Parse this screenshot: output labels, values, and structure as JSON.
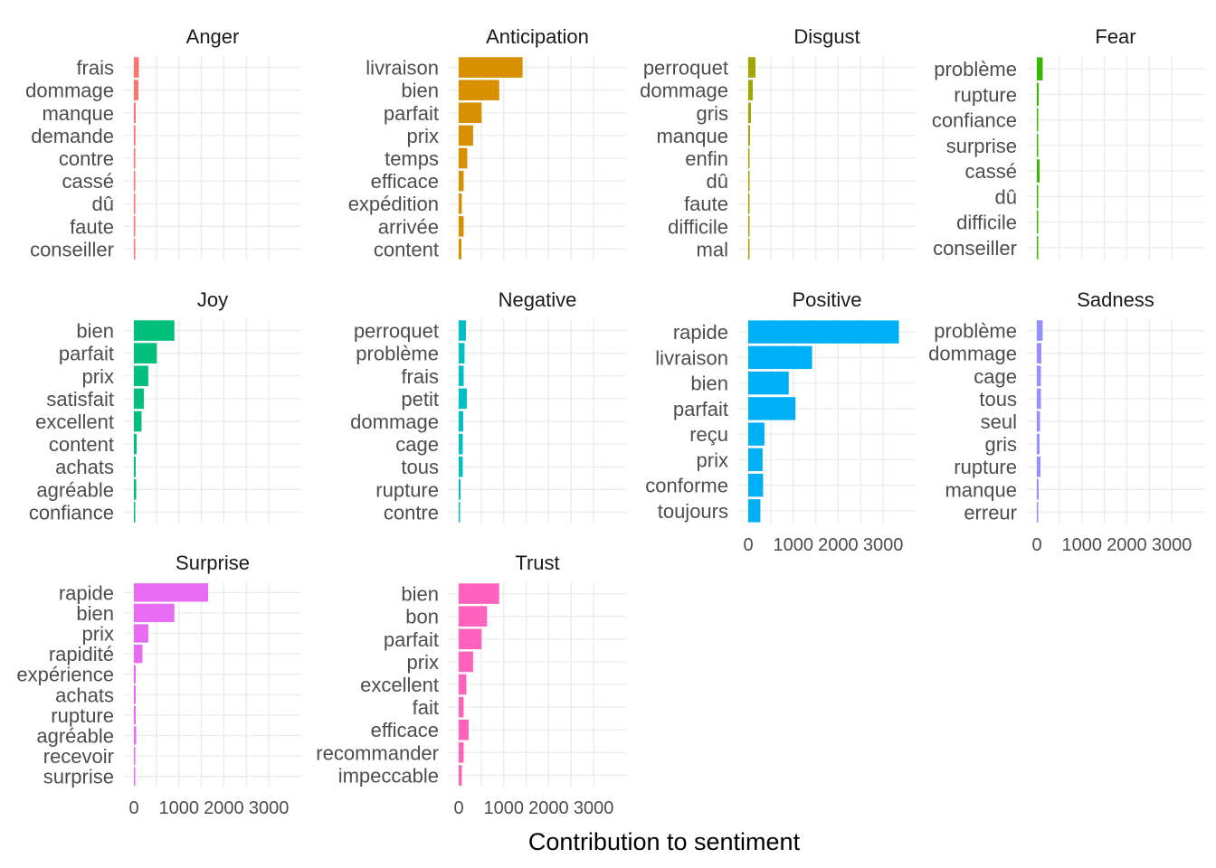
{
  "chart_data": {
    "type": "bar",
    "orientation": "horizontal",
    "layout": "facet_wrap",
    "xlabel": "Contribution to sentiment",
    "x_ticks": [
      0,
      1000,
      2000,
      3000
    ],
    "x_tick_labels": [
      "0",
      "1000",
      "2000",
      "3000"
    ],
    "xlim": [
      0,
      3500
    ],
    "grid": true,
    "facets": [
      {
        "name": "Anger",
        "color": "#F8766D",
        "categories": [
          "frais",
          "dommage",
          "manque",
          "demande",
          "contre",
          "cassé",
          "dû",
          "faute",
          "conseiller"
        ],
        "values": [
          110,
          100,
          40,
          35,
          30,
          30,
          20,
          20,
          15
        ]
      },
      {
        "name": "Anticipation",
        "color": "#D89000",
        "categories": [
          "livraison",
          "bien",
          "parfait",
          "prix",
          "temps",
          "efficace",
          "expédition",
          "arrivée",
          "content"
        ],
        "values": [
          1420,
          900,
          510,
          320,
          190,
          110,
          70,
          110,
          60
        ]
      },
      {
        "name": "Disgust",
        "color": "#A3A500",
        "categories": [
          "perroquet",
          "dommage",
          "gris",
          "manque",
          "enfin",
          "dû",
          "faute",
          "difficile",
          "mal"
        ],
        "values": [
          160,
          100,
          60,
          40,
          30,
          20,
          20,
          15,
          15
        ]
      },
      {
        "name": "Fear",
        "color": "#39B600",
        "categories": [
          "problème",
          "rupture",
          "confiance",
          "surprise",
          "cassé",
          "dû",
          "difficile",
          "conseiller"
        ],
        "values": [
          130,
          40,
          25,
          20,
          60,
          20,
          15,
          15
        ]
      },
      {
        "name": "Joy",
        "color": "#00BF7D",
        "categories": [
          "bien",
          "parfait",
          "prix",
          "satisfait",
          "excellent",
          "content",
          "achats",
          "agréable",
          "confiance"
        ],
        "values": [
          900,
          510,
          320,
          220,
          170,
          60,
          40,
          50,
          25
        ]
      },
      {
        "name": "Negative",
        "color": "#00BFC4",
        "categories": [
          "perroquet",
          "problème",
          "frais",
          "petit",
          "dommage",
          "cage",
          "tous",
          "rupture",
          "contre"
        ],
        "values": [
          160,
          130,
          110,
          180,
          100,
          90,
          90,
          40,
          30
        ]
      },
      {
        "name": "Positive",
        "color": "#00B0F6",
        "categories": [
          "rapide",
          "livraison",
          "bien",
          "parfait",
          "reçu",
          "prix",
          "conforme",
          "toujours"
        ],
        "values": [
          3350,
          1420,
          900,
          1050,
          360,
          320,
          330,
          270
        ]
      },
      {
        "name": "Sadness",
        "color": "#9590FF",
        "categories": [
          "problème",
          "dommage",
          "cage",
          "tous",
          "seul",
          "gris",
          "rupture",
          "manque",
          "erreur"
        ],
        "values": [
          130,
          100,
          90,
          90,
          70,
          60,
          80,
          40,
          25
        ]
      },
      {
        "name": "Surprise",
        "color": "#E76BF3",
        "categories": [
          "rapide",
          "bien",
          "prix",
          "rapidité",
          "expérience",
          "achats",
          "rupture",
          "agréable",
          "recevoir",
          "surprise"
        ],
        "values": [
          1650,
          900,
          320,
          190,
          40,
          40,
          40,
          50,
          20,
          20
        ]
      },
      {
        "name": "Trust",
        "color": "#FF62BC",
        "categories": [
          "bien",
          "bon",
          "parfait",
          "prix",
          "excellent",
          "fait",
          "efficace",
          "recommander",
          "impeccable"
        ],
        "values": [
          900,
          630,
          510,
          320,
          170,
          110,
          220,
          110,
          70
        ]
      }
    ]
  }
}
